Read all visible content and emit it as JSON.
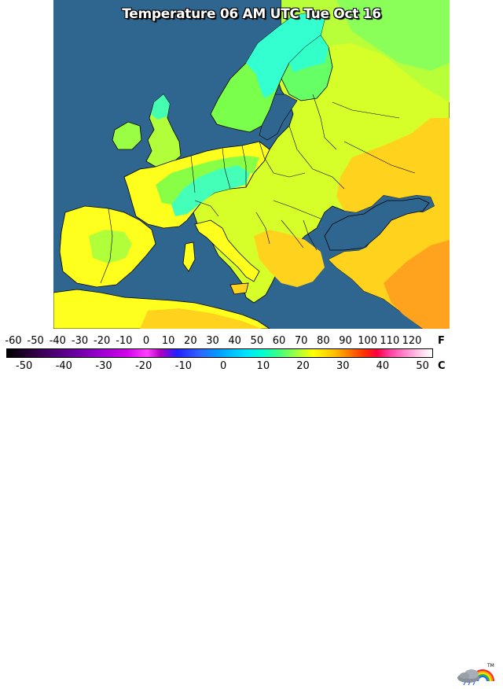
{
  "map": {
    "title": "Temperature 06 AM UTC Tue Oct 16",
    "colors": {
      "ocean": "#2e6690",
      "cyan": "#33ffd0",
      "green": "#7aff4a",
      "yellow_green": "#c8ff22",
      "yellow": "#ffff1e",
      "orange_yellow": "#ffd21e",
      "orange": "#ffa21e"
    }
  },
  "legend": {
    "fahrenheit_ticks": [
      "-60",
      "-50",
      "-40",
      "-30",
      "-20",
      "-10",
      "0",
      "10",
      "20",
      "30",
      "40",
      "50",
      "60",
      "70",
      "80",
      "90",
      "100",
      "110",
      "120"
    ],
    "celsius_ticks": [
      "-50",
      "-40",
      "-30",
      "-20",
      "-10",
      "0",
      "10",
      "20",
      "30",
      "40",
      "50"
    ],
    "fahrenheit_unit": "F",
    "celsius_unit": "C",
    "logo_icon": "cloud-rainbow-logo-icon",
    "trademark": "TM"
  }
}
